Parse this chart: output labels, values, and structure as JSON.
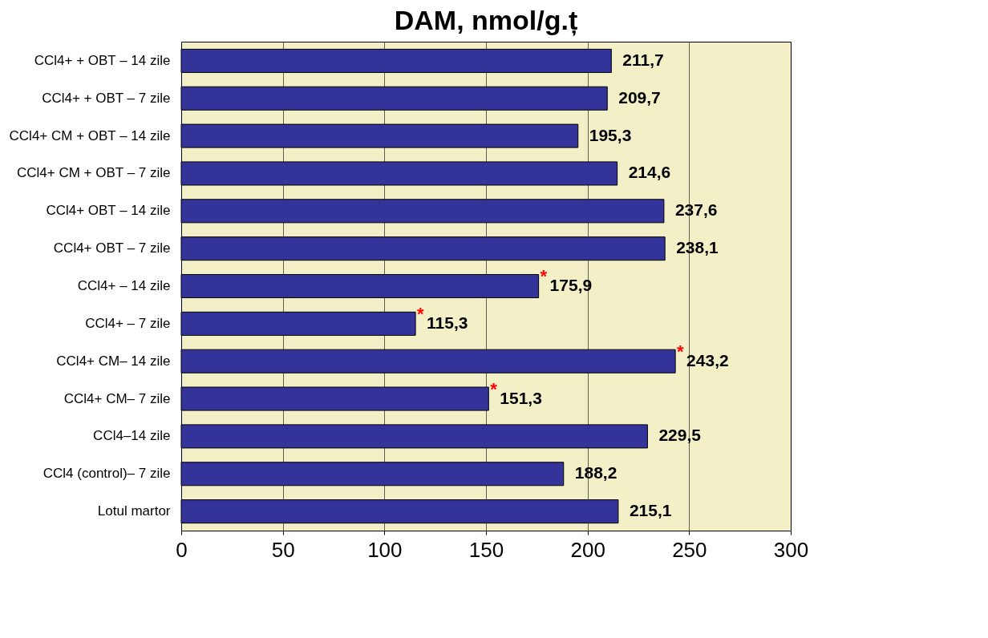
{
  "chart_data": {
    "type": "bar",
    "orientation": "horizontal",
    "title": "DAM, nmol/g.ț",
    "categories": [
      "CCl4+ + OBT – 14 zile",
      "CCl4+ + OBT – 7 zile",
      "CCl4+ CM + OBT – 14 zile",
      "CCl4+ CM + OBT – 7 zile",
      "CCl4+ OBT – 14 zile",
      "CCl4+ OBT – 7 zile",
      "CCl4+ – 14 zile",
      "CCl4+ – 7 zile",
      "CCl4+ CM– 14 zile",
      "CCl4+ CM– 7 zile",
      "CCl4–14 zile",
      "CCl4 (control)– 7 zile",
      "Lotul martor"
    ],
    "values": [
      211.7,
      209.7,
      195.3,
      214.6,
      237.6,
      238.1,
      175.9,
      115.3,
      243.2,
      151.3,
      229.5,
      188.2,
      215.1
    ],
    "value_labels": [
      "211,7",
      "209,7",
      "195,3",
      "214,6",
      "237,6",
      "238,1",
      "175,9",
      "115,3",
      "243,2",
      "151,3",
      "229,5",
      "188,2",
      "215,1"
    ],
    "color": "#333399",
    "xlim": [
      0,
      300
    ],
    "xticks": [
      0,
      50,
      100,
      150,
      200,
      250,
      300
    ],
    "grid": "x",
    "annotations": [
      {
        "text": "*",
        "x": 175.9,
        "y": "CCl4+ – 14 zile"
      },
      {
        "text": "*",
        "x": 115.3,
        "y": "CCl4+ – 7 zile"
      },
      {
        "text": "*",
        "x": 243.2,
        "y": "CCl4+ CM– 14 zile"
      },
      {
        "text": "*",
        "x": 151.3,
        "y": "CCl4+ CM– 7 zile"
      }
    ]
  }
}
